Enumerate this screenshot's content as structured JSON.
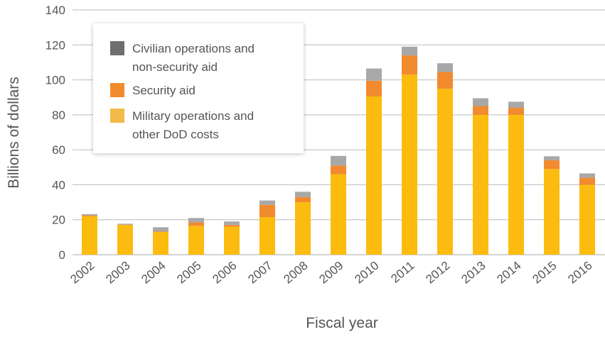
{
  "chart_data": {
    "type": "bar",
    "stacked": true,
    "title": "",
    "xlabel": "Fiscal year",
    "ylabel": "Billions of dollars",
    "ylim": [
      0,
      140
    ],
    "yticks": [
      0,
      20,
      40,
      60,
      80,
      100,
      120,
      140
    ],
    "grid": true,
    "legend_position": "top-left",
    "categories": [
      "2002",
      "2003",
      "2004",
      "2005",
      "2006",
      "2007",
      "2008",
      "2009",
      "2010",
      "2011",
      "2012",
      "2013",
      "2014",
      "2015",
      "2016"
    ],
    "series": [
      {
        "name": "Military operations and other DoD costs",
        "color": "#FBBC0F",
        "values": [
          22,
          17,
          13,
          16.5,
          16,
          21.5,
          30,
          46,
          90.5,
          103,
          95,
          80,
          80,
          49,
          40
        ]
      },
      {
        "name": "Security aid",
        "color": "#F28A2E",
        "values": [
          0.5,
          0.2,
          0.2,
          2,
          1,
          7,
          3,
          5,
          9,
          11,
          9.5,
          5,
          4,
          5,
          4
        ]
      },
      {
        "name": "Civilian operations and non-security aid",
        "color": "#A8A8A8",
        "values": [
          0.7,
          0.5,
          2.5,
          2.5,
          2,
          2.5,
          3,
          5.5,
          7,
          5,
          5,
          4.5,
          3.5,
          2.3,
          2.5
        ]
      }
    ],
    "legend": [
      {
        "label": "Civilian operations and non-security aid",
        "line1": "Civilian operations and",
        "line2": "non-security aid",
        "swatch_color": "#6E6E6E"
      },
      {
        "label": "Security aid",
        "line1": "Security aid",
        "line2": "",
        "swatch_color": "#F28A2E"
      },
      {
        "label": "Military operations and other DoD costs",
        "line1": "Military operations and",
        "line2": "other DoD costs",
        "swatch_color": "#F2B94B"
      }
    ]
  },
  "colors": {
    "grid": "#BBBBBB",
    "axis_text": "#555555",
    "legend_bg": "#FFFFFF"
  }
}
